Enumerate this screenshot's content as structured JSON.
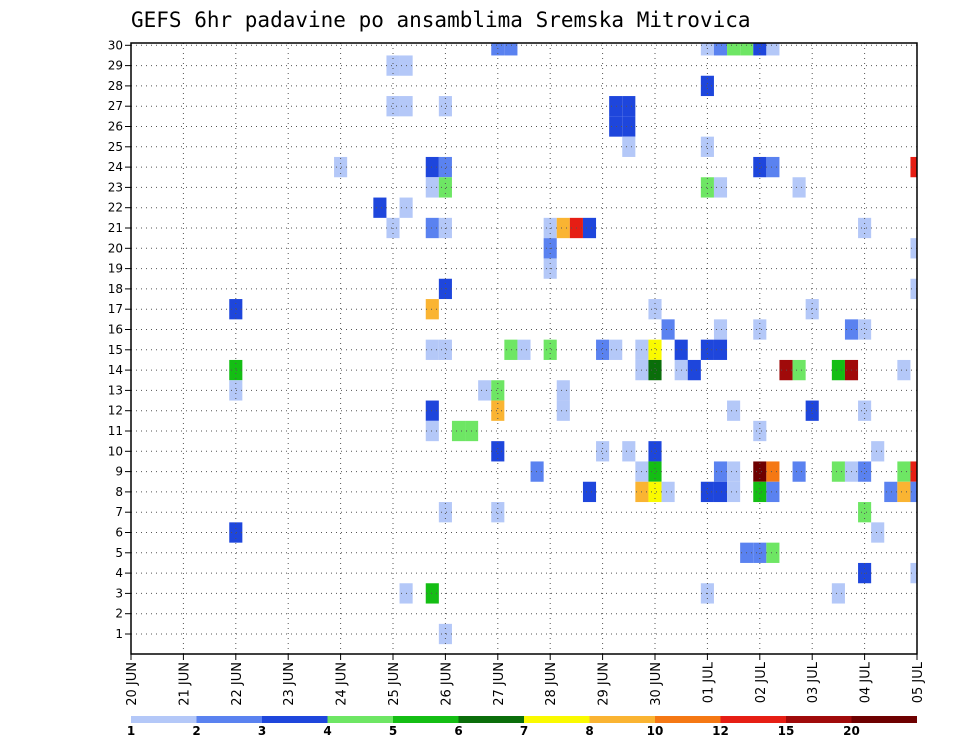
{
  "chart_data": {
    "type": "heatmap",
    "title": "GEFS 6hr padavine po ansamblima Sremska Mitrovica",
    "xlabel": "",
    "ylabel": "",
    "y_ticks": [
      "1",
      "2",
      "3",
      "4",
      "5",
      "6",
      "7",
      "8",
      "9",
      "10",
      "11",
      "12",
      "13",
      "14",
      "15",
      "16",
      "17",
      "18",
      "19",
      "20",
      "21",
      "22",
      "23",
      "24",
      "25",
      "26",
      "27",
      "28",
      "29",
      "30"
    ],
    "ylim": [
      1,
      30
    ],
    "x_ticks": [
      {
        "day": "20",
        "month": "JUN"
      },
      {
        "day": "21",
        "month": "JUN"
      },
      {
        "day": "22",
        "month": "JUN"
      },
      {
        "day": "23",
        "month": "JUN"
      },
      {
        "day": "24",
        "month": "JUN"
      },
      {
        "day": "25",
        "month": "JUN"
      },
      {
        "day": "26",
        "month": "JUN"
      },
      {
        "day": "27",
        "month": "JUN"
      },
      {
        "day": "28",
        "month": "JUN"
      },
      {
        "day": "29",
        "month": "JUN"
      },
      {
        "day": "30",
        "month": "JUN"
      },
      {
        "day": "01",
        "month": "JUL"
      },
      {
        "day": "02",
        "month": "JUL"
      },
      {
        "day": "03",
        "month": "JUL"
      },
      {
        "day": "04",
        "month": "JUL"
      },
      {
        "day": "05",
        "month": "JUL"
      }
    ],
    "grid": true,
    "legend": {
      "placement": "bottom",
      "bins": [
        {
          "color": "#b4c8f8"
        },
        {
          "color": "#5a82f0"
        },
        {
          "color": "#1e46dc"
        },
        {
          "color": "#6ee664"
        },
        {
          "color": "#14be14"
        },
        {
          "color": "#0a6e0a"
        },
        {
          "color": "#fafa00"
        },
        {
          "color": "#fab432"
        },
        {
          "color": "#f57814"
        },
        {
          "color": "#e61e14"
        },
        {
          "color": "#a00a0a"
        },
        {
          "color": "#6e0000"
        }
      ],
      "labels": [
        {
          "text": "1",
          "edge": 0
        },
        {
          "text": "2",
          "edge": 1
        },
        {
          "text": "3",
          "edge": 2
        },
        {
          "text": "4",
          "edge": 3
        },
        {
          "text": "5",
          "edge": 4
        },
        {
          "text": "6",
          "edge": 5
        },
        {
          "text": "7",
          "edge": 6
        },
        {
          "text": "8",
          "edge": 7
        },
        {
          "text": "10",
          "edge": 8
        },
        {
          "text": "12",
          "edge": 9
        },
        {
          "text": "15",
          "edge": 10
        },
        {
          "text": "20",
          "edge": 11
        }
      ]
    },
    "cells": [
      {
        "t": "2024-06-27T00",
        "m": 30,
        "b": 2
      },
      {
        "t": "2024-06-27T06",
        "m": 30,
        "b": 2
      },
      {
        "t": "2024-07-01T00",
        "m": 30,
        "b": 1
      },
      {
        "t": "2024-07-01T06",
        "m": 30,
        "b": 2
      },
      {
        "t": "2024-07-01T12",
        "m": 30,
        "b": 4
      },
      {
        "t": "2024-07-01T18",
        "m": 30,
        "b": 4
      },
      {
        "t": "2024-07-02T00",
        "m": 30,
        "b": 3
      },
      {
        "t": "2024-07-02T06",
        "m": 30,
        "b": 1
      },
      {
        "t": "2024-06-25T00",
        "m": 29,
        "b": 1
      },
      {
        "t": "2024-06-25T06",
        "m": 29,
        "b": 1
      },
      {
        "t": "2024-07-01T00",
        "m": 28,
        "b": 3
      },
      {
        "t": "2024-06-25T00",
        "m": 27,
        "b": 1
      },
      {
        "t": "2024-06-25T06",
        "m": 27,
        "b": 1
      },
      {
        "t": "2024-06-26T00",
        "m": 27,
        "b": 1
      },
      {
        "t": "2024-06-29T06",
        "m": 27,
        "b": 3
      },
      {
        "t": "2024-06-29T12",
        "m": 27,
        "b": 3
      },
      {
        "t": "2024-06-29T06",
        "m": 26,
        "b": 3
      },
      {
        "t": "2024-06-29T12",
        "m": 26,
        "b": 3
      },
      {
        "t": "2024-06-29T12",
        "m": 25,
        "b": 1
      },
      {
        "t": "2024-07-01T00",
        "m": 25,
        "b": 1
      },
      {
        "t": "2024-06-24T00",
        "m": 24,
        "b": 1
      },
      {
        "t": "2024-06-25T18",
        "m": 24,
        "b": 3
      },
      {
        "t": "2024-06-26T00",
        "m": 24,
        "b": 2
      },
      {
        "t": "2024-07-02T00",
        "m": 24,
        "b": 3
      },
      {
        "t": "2024-07-02T06",
        "m": 24,
        "b": 2
      },
      {
        "t": "2024-07-05T00",
        "m": 24,
        "b": 10
      },
      {
        "t": "2024-06-25T18",
        "m": 23,
        "b": 1
      },
      {
        "t": "2024-06-26T00",
        "m": 23,
        "b": 4
      },
      {
        "t": "2024-07-01T00",
        "m": 23,
        "b": 4
      },
      {
        "t": "2024-07-01T06",
        "m": 23,
        "b": 1
      },
      {
        "t": "2024-07-02T18",
        "m": 23,
        "b": 1
      },
      {
        "t": "2024-06-24T18",
        "m": 22,
        "b": 3
      },
      {
        "t": "2024-06-25T06",
        "m": 22,
        "b": 1
      },
      {
        "t": "2024-06-25T00",
        "m": 21,
        "b": 1
      },
      {
        "t": "2024-06-25T18",
        "m": 21,
        "b": 2
      },
      {
        "t": "2024-06-26T00",
        "m": 21,
        "b": 1
      },
      {
        "t": "2024-06-28T00",
        "m": 21,
        "b": 1
      },
      {
        "t": "2024-06-28T06",
        "m": 21,
        "b": 8
      },
      {
        "t": "2024-06-28T12",
        "m": 21,
        "b": 10
      },
      {
        "t": "2024-06-28T18",
        "m": 21,
        "b": 3
      },
      {
        "t": "2024-07-04T00",
        "m": 21,
        "b": 1
      },
      {
        "t": "2024-06-28T00",
        "m": 20,
        "b": 2
      },
      {
        "t": "2024-07-05T00",
        "m": 20,
        "b": 1
      },
      {
        "t": "2024-06-28T00",
        "m": 19,
        "b": 1
      },
      {
        "t": "2024-06-26T00",
        "m": 18,
        "b": 3
      },
      {
        "t": "2024-07-05T00",
        "m": 18,
        "b": 1
      },
      {
        "t": "2024-06-22T00",
        "m": 17,
        "b": 3
      },
      {
        "t": "2024-06-25T18",
        "m": 17,
        "b": 8
      },
      {
        "t": "2024-06-30T00",
        "m": 17,
        "b": 1
      },
      {
        "t": "2024-07-03T00",
        "m": 17,
        "b": 1
      },
      {
        "t": "2024-06-30T06",
        "m": 16,
        "b": 2
      },
      {
        "t": "2024-07-01T06",
        "m": 16,
        "b": 1
      },
      {
        "t": "2024-07-02T00",
        "m": 16,
        "b": 1
      },
      {
        "t": "2024-07-03T18",
        "m": 16,
        "b": 2
      },
      {
        "t": "2024-07-04T00",
        "m": 16,
        "b": 1
      },
      {
        "t": "2024-06-25T18",
        "m": 15,
        "b": 1
      },
      {
        "t": "2024-06-26T00",
        "m": 15,
        "b": 1
      },
      {
        "t": "2024-06-27T06",
        "m": 15,
        "b": 4
      },
      {
        "t": "2024-06-27T12",
        "m": 15,
        "b": 1
      },
      {
        "t": "2024-06-28T00",
        "m": 15,
        "b": 4
      },
      {
        "t": "2024-06-29T00",
        "m": 15,
        "b": 2
      },
      {
        "t": "2024-06-29T06",
        "m": 15,
        "b": 1
      },
      {
        "t": "2024-06-29T18",
        "m": 15,
        "b": 1
      },
      {
        "t": "2024-06-30T00",
        "m": 15,
        "b": 7
      },
      {
        "t": "2024-06-30T12",
        "m": 15,
        "b": 3
      },
      {
        "t": "2024-07-01T00",
        "m": 15,
        "b": 3
      },
      {
        "t": "2024-07-01T06",
        "m": 15,
        "b": 3
      },
      {
        "t": "2024-06-22T00",
        "m": 14,
        "b": 5
      },
      {
        "t": "2024-06-29T18",
        "m": 14,
        "b": 1
      },
      {
        "t": "2024-06-30T00",
        "m": 14,
        "b": 6
      },
      {
        "t": "2024-06-30T12",
        "m": 14,
        "b": 1
      },
      {
        "t": "2024-06-30T18",
        "m": 14,
        "b": 3
      },
      {
        "t": "2024-07-02T12",
        "m": 14,
        "b": 11
      },
      {
        "t": "2024-07-02T18",
        "m": 14,
        "b": 4
      },
      {
        "t": "2024-07-03T12",
        "m": 14,
        "b": 5
      },
      {
        "t": "2024-07-03T18",
        "m": 14,
        "b": 11
      },
      {
        "t": "2024-07-04T18",
        "m": 14,
        "b": 1
      },
      {
        "t": "2024-06-22T00",
        "m": 13,
        "b": 1
      },
      {
        "t": "2024-06-26T18",
        "m": 13,
        "b": 1
      },
      {
        "t": "2024-06-27T00",
        "m": 13,
        "b": 4
      },
      {
        "t": "2024-06-28T06",
        "m": 13,
        "b": 1
      },
      {
        "t": "2024-06-25T18",
        "m": 12,
        "b": 3
      },
      {
        "t": "2024-06-27T00",
        "m": 12,
        "b": 8
      },
      {
        "t": "2024-06-28T06",
        "m": 12,
        "b": 1
      },
      {
        "t": "2024-07-01T12",
        "m": 12,
        "b": 1
      },
      {
        "t": "2024-07-03T00",
        "m": 12,
        "b": 3
      },
      {
        "t": "2024-07-04T00",
        "m": 12,
        "b": 1
      },
      {
        "t": "2024-06-25T18",
        "m": 11,
        "b": 1
      },
      {
        "t": "2024-06-26T06",
        "m": 11,
        "b": 4
      },
      {
        "t": "2024-06-26T12",
        "m": 11,
        "b": 4
      },
      {
        "t": "2024-07-02T00",
        "m": 11,
        "b": 1
      },
      {
        "t": "2024-06-27T00",
        "m": 10,
        "b": 3
      },
      {
        "t": "2024-06-29T00",
        "m": 10,
        "b": 1
      },
      {
        "t": "2024-06-29T12",
        "m": 10,
        "b": 1
      },
      {
        "t": "2024-06-30T00",
        "m": 10,
        "b": 3
      },
      {
        "t": "2024-07-04T06",
        "m": 10,
        "b": 1
      },
      {
        "t": "2024-06-27T18",
        "m": 9,
        "b": 2
      },
      {
        "t": "2024-06-29T18",
        "m": 9,
        "b": 1
      },
      {
        "t": "2024-06-30T00",
        "m": 9,
        "b": 5
      },
      {
        "t": "2024-07-01T06",
        "m": 9,
        "b": 2
      },
      {
        "t": "2024-07-01T12",
        "m": 9,
        "b": 1
      },
      {
        "t": "2024-07-02T00",
        "m": 9,
        "b": 12
      },
      {
        "t": "2024-07-02T06",
        "m": 9,
        "b": 9
      },
      {
        "t": "2024-07-02T18",
        "m": 9,
        "b": 2
      },
      {
        "t": "2024-07-03T12",
        "m": 9,
        "b": 4
      },
      {
        "t": "2024-07-03T18",
        "m": 9,
        "b": 1
      },
      {
        "t": "2024-07-04T00",
        "m": 9,
        "b": 2
      },
      {
        "t": "2024-07-04T18",
        "m": 9,
        "b": 4
      },
      {
        "t": "2024-07-05T00",
        "m": 9,
        "b": 10
      },
      {
        "t": "2024-06-28T18",
        "m": 8,
        "b": 3
      },
      {
        "t": "2024-06-29T18",
        "m": 8,
        "b": 8
      },
      {
        "t": "2024-06-30T00",
        "m": 8,
        "b": 7
      },
      {
        "t": "2024-06-30T06",
        "m": 8,
        "b": 1
      },
      {
        "t": "2024-07-01T00",
        "m": 8,
        "b": 3
      },
      {
        "t": "2024-07-01T06",
        "m": 8,
        "b": 3
      },
      {
        "t": "2024-07-01T12",
        "m": 8,
        "b": 1
      },
      {
        "t": "2024-07-02T00",
        "m": 8,
        "b": 5
      },
      {
        "t": "2024-07-02T06",
        "m": 8,
        "b": 2
      },
      {
        "t": "2024-07-04T12",
        "m": 8,
        "b": 2
      },
      {
        "t": "2024-07-04T18",
        "m": 8,
        "b": 8
      },
      {
        "t": "2024-07-05T00",
        "m": 8,
        "b": 2
      },
      {
        "t": "2024-06-26T00",
        "m": 7,
        "b": 1
      },
      {
        "t": "2024-06-27T00",
        "m": 7,
        "b": 1
      },
      {
        "t": "2024-07-04T00",
        "m": 7,
        "b": 4
      },
      {
        "t": "2024-06-22T00",
        "m": 6,
        "b": 3
      },
      {
        "t": "2024-07-04T06",
        "m": 6,
        "b": 1
      },
      {
        "t": "2024-07-01T18",
        "m": 5,
        "b": 2
      },
      {
        "t": "2024-07-02T00",
        "m": 5,
        "b": 2
      },
      {
        "t": "2024-07-02T06",
        "m": 5,
        "b": 4
      },
      {
        "t": "2024-07-04T00",
        "m": 4,
        "b": 3
      },
      {
        "t": "2024-07-05T00",
        "m": 4,
        "b": 1
      },
      {
        "t": "2024-06-25T06",
        "m": 3,
        "b": 1
      },
      {
        "t": "2024-06-25T18",
        "m": 3,
        "b": 5
      },
      {
        "t": "2024-07-01T00",
        "m": 3,
        "b": 1
      },
      {
        "t": "2024-07-03T12",
        "m": 3,
        "b": 1
      },
      {
        "t": "2024-06-26T00",
        "m": 1,
        "b": 1
      }
    ]
  }
}
